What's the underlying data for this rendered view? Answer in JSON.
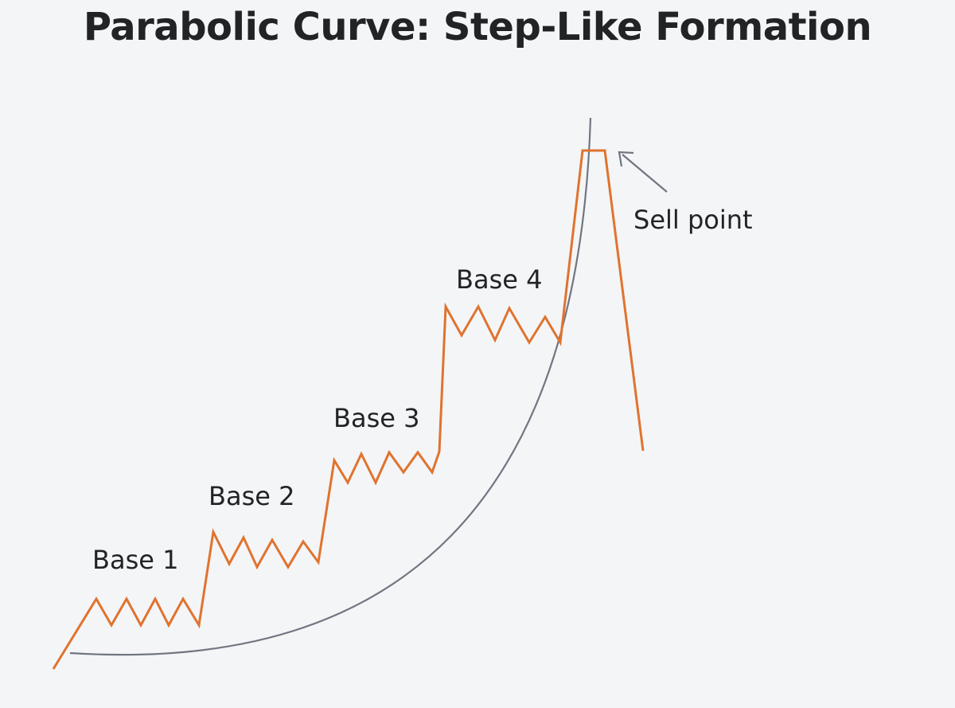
{
  "title": "Parabolic Curve: Step-Like Formation",
  "labels": {
    "base1": "Base 1",
    "base2": "Base 2",
    "base3": "Base 3",
    "base4": "Base 4",
    "sell_point": "Sell point"
  },
  "colors": {
    "background": "#f4f5f7",
    "price_line": "#e0732e",
    "parabola": "#707680",
    "arrow": "#707680",
    "text": "#222325"
  }
}
